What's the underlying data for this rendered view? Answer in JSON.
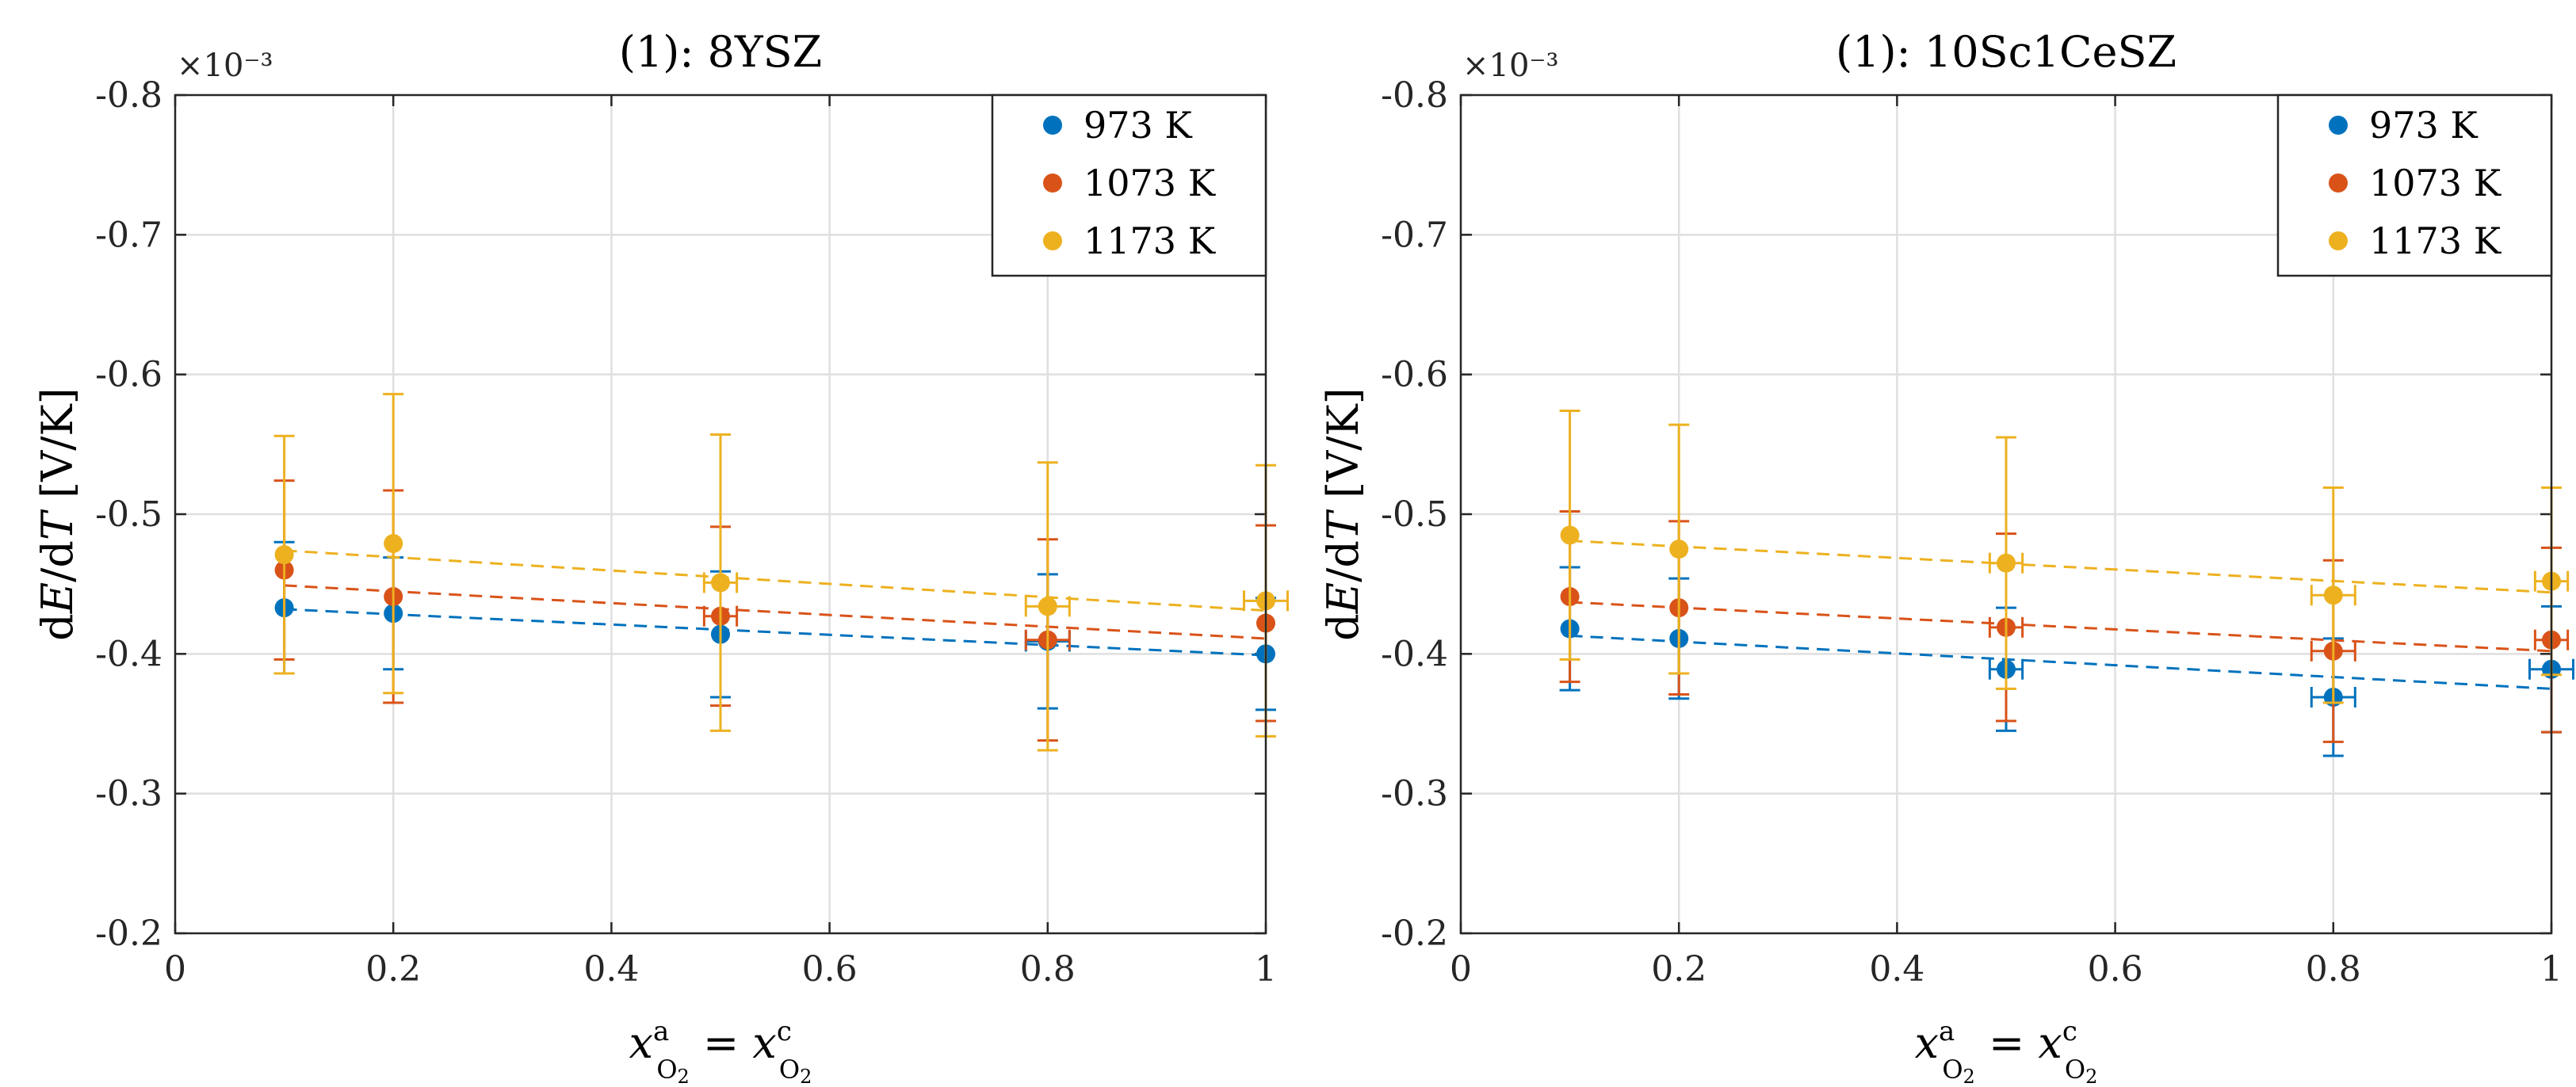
{
  "chart_data": [
    {
      "type": "scatter",
      "title": "(1): 8YSZ",
      "xlabel": "x_O2^a = x_O2^c",
      "ylabel": "dE/dT [V/K]",
      "y_multiplier": "×10⁻³",
      "xlim": [
        0,
        1
      ],
      "ylim": [
        -0.8,
        -0.2
      ],
      "y_reversed": true,
      "x_ticks": [
        "0",
        "0.2",
        "0.4",
        "0.6",
        "0.8",
        "1"
      ],
      "y_ticks": [
        "-0.8",
        "-0.7",
        "-0.6",
        "-0.5",
        "-0.4",
        "-0.3",
        "-0.2"
      ],
      "grid": true,
      "legend_position": "top-right",
      "series": [
        {
          "name": "973 K",
          "color": "#0072BD",
          "x": [
            0.1,
            0.2,
            0.5,
            0.8,
            1.0
          ],
          "y": [
            -0.433,
            -0.429,
            -0.414,
            -0.409,
            -0.4
          ],
          "yerr": [
            0.047,
            0.04,
            0.045,
            0.048,
            0.04
          ],
          "xerr": [
            0,
            0,
            0,
            0.02,
            0
          ],
          "fit": [
            -0.432,
            -0.399
          ]
        },
        {
          "name": "1073 K",
          "color": "#D95319",
          "x": [
            0.1,
            0.2,
            0.5,
            0.8,
            1.0
          ],
          "y": [
            -0.46,
            -0.441,
            -0.427,
            -0.41,
            -0.422
          ],
          "yerr": [
            0.064,
            0.076,
            0.064,
            0.072,
            0.07
          ],
          "xerr": [
            0,
            0,
            0.015,
            0.02,
            0
          ],
          "fit": [
            -0.449,
            -0.411
          ]
        },
        {
          "name": "1173 K",
          "color": "#EDB120",
          "x": [
            0.1,
            0.2,
            0.5,
            0.8,
            1.0
          ],
          "y": [
            -0.471,
            -0.479,
            -0.451,
            -0.434,
            -0.438
          ],
          "yerr": [
            0.085,
            0.107,
            0.106,
            0.103,
            0.097
          ],
          "xerr": [
            0,
            0,
            0.015,
            0.02,
            0.02
          ],
          "fit": [
            -0.474,
            -0.431
          ]
        }
      ]
    },
    {
      "type": "scatter",
      "title": "(1): 10Sc1CeSZ",
      "xlabel": "x_O2^a = x_O2^c",
      "ylabel": "dE/dT [V/K]",
      "y_multiplier": "×10⁻³",
      "xlim": [
        0,
        1
      ],
      "ylim": [
        -0.8,
        -0.2
      ],
      "y_reversed": true,
      "x_ticks": [
        "0",
        "0.2",
        "0.4",
        "0.6",
        "0.8",
        "1"
      ],
      "y_ticks": [
        "-0.8",
        "-0.7",
        "-0.6",
        "-0.5",
        "-0.4",
        "-0.3",
        "-0.2"
      ],
      "grid": true,
      "legend_position": "top-right",
      "series": [
        {
          "name": "973 K",
          "color": "#0072BD",
          "x": [
            0.1,
            0.2,
            0.5,
            0.8,
            1.0
          ],
          "y": [
            -0.418,
            -0.411,
            -0.389,
            -0.369,
            -0.389
          ],
          "yerr": [
            0.044,
            0.043,
            0.044,
            0.042,
            0.045
          ],
          "xerr": [
            0,
            0,
            0.015,
            0.02,
            0.02
          ],
          "fit": [
            -0.413,
            -0.375
          ]
        },
        {
          "name": "1073 K",
          "color": "#D95319",
          "x": [
            0.1,
            0.2,
            0.5,
            0.8,
            1.0
          ],
          "y": [
            -0.441,
            -0.433,
            -0.419,
            -0.402,
            -0.41
          ],
          "yerr": [
            0.061,
            0.062,
            0.067,
            0.065,
            0.066
          ],
          "xerr": [
            0,
            0,
            0.015,
            0.02,
            0.015
          ],
          "fit": [
            -0.437,
            -0.402
          ]
        },
        {
          "name": "1173 K",
          "color": "#EDB120",
          "x": [
            0.1,
            0.2,
            0.5,
            0.8,
            1.0
          ],
          "y": [
            -0.485,
            -0.475,
            -0.465,
            -0.442,
            -0.452
          ],
          "yerr": [
            0.089,
            0.089,
            0.09,
            0.077,
            0.067
          ],
          "xerr": [
            0,
            0,
            0.015,
            0.02,
            0.015
          ],
          "fit": [
            -0.481,
            -0.444
          ]
        }
      ]
    }
  ]
}
